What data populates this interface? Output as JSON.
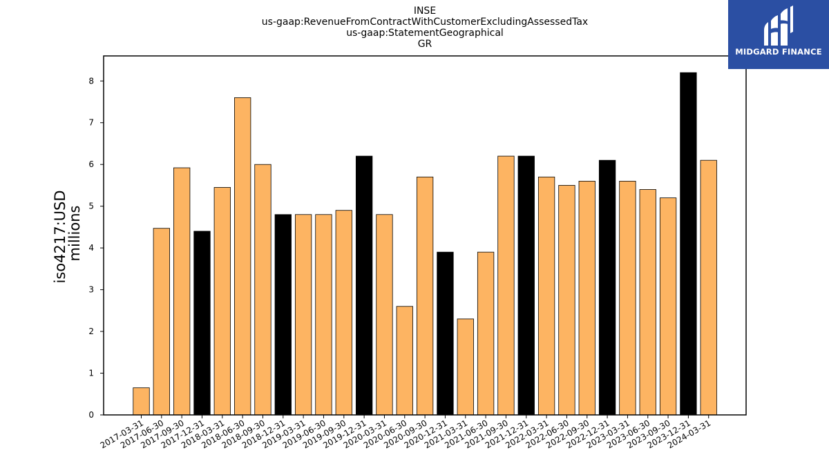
{
  "chart_data": {
    "type": "bar",
    "title_lines": [
      "INSE",
      "us-gaap:RevenueFromContractWithCustomerExcludingAssessedTax",
      "us-gaap:StatementGeographical",
      "GR"
    ],
    "ylabel_lines": [
      "iso4217:USD",
      "millions"
    ],
    "xlabel": "",
    "ylim": [
      0,
      8.6
    ],
    "yticks": [
      0,
      1,
      2,
      3,
      4,
      5,
      6,
      7,
      8
    ],
    "categories": [
      "2017-03-31",
      "2017-06-30",
      "2017-09-30",
      "2017-12-31",
      "2018-03-31",
      "2018-06-30",
      "2018-09-30",
      "2018-12-31",
      "2019-03-31",
      "2019-06-30",
      "2019-09-30",
      "2019-12-31",
      "2020-03-31",
      "2020-06-30",
      "2020-09-30",
      "2020-12-31",
      "2021-03-31",
      "2021-06-30",
      "2021-09-30",
      "2021-12-31",
      "2022-03-31",
      "2022-06-30",
      "2022-09-30",
      "2022-12-31",
      "2023-03-31",
      "2023-06-30",
      "2023-09-30",
      "2023-12-31",
      "2024-03-31"
    ],
    "values": [
      0.65,
      4.47,
      5.92,
      4.4,
      5.45,
      7.6,
      6.0,
      4.8,
      4.8,
      4.8,
      4.9,
      6.2,
      4.8,
      2.6,
      5.7,
      3.9,
      2.3,
      3.9,
      6.2,
      6.2,
      5.7,
      5.5,
      5.6,
      6.1,
      5.6,
      5.4,
      5.2,
      8.2,
      6.1
    ],
    "bar_colors": [
      "#fdb462",
      "#fdb462",
      "#fdb462",
      "#000000",
      "#fdb462",
      "#fdb462",
      "#fdb462",
      "#000000",
      "#fdb462",
      "#fdb462",
      "#fdb462",
      "#000000",
      "#fdb462",
      "#fdb462",
      "#fdb462",
      "#000000",
      "#fdb462",
      "#fdb462",
      "#fdb462",
      "#000000",
      "#fdb462",
      "#fdb462",
      "#fdb462",
      "#000000",
      "#fdb462",
      "#fdb462",
      "#fdb462",
      "#000000",
      "#fdb462"
    ],
    "grid": false,
    "legend": "none"
  },
  "logo": {
    "text": "MIDGARD FINANCE",
    "background": "#2b4fa3",
    "icon": "midgard-logo-icon"
  }
}
